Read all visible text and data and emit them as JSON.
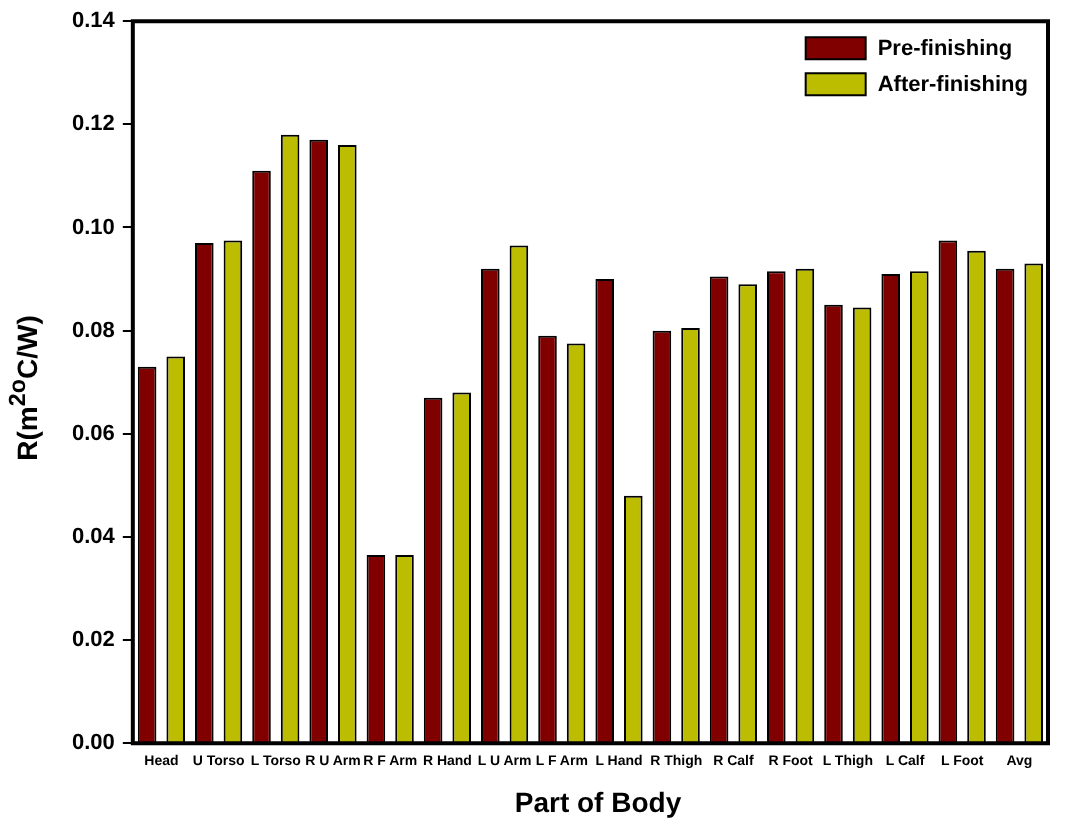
{
  "chart_data": {
    "type": "bar",
    "xlabel": "Part of Body",
    "ylabel": "R(m$^{2o}$C/W)",
    "categories": [
      "Head",
      "U Torso",
      "L Torso",
      "R U Arm",
      "R F Arm",
      "R Hand",
      "L U Arm",
      "L F Arm",
      "L Hand",
      "R Thigh",
      "R Calf",
      "R Foot",
      "L Thigh",
      "L Calf",
      "L Foot",
      "Avg"
    ],
    "series": [
      {
        "name": "Pre-finishing",
        "color": "#800000",
        "values": [
          0.073,
          0.097,
          0.111,
          0.117,
          0.0365,
          0.067,
          0.092,
          0.079,
          0.09,
          0.08,
          0.0905,
          0.0915,
          0.085,
          0.091,
          0.0975,
          0.092
        ]
      },
      {
        "name": "After-finishing",
        "color": "#bcbc00",
        "values": [
          0.075,
          0.0975,
          0.118,
          0.116,
          0.0365,
          0.068,
          0.0965,
          0.0775,
          0.048,
          0.0805,
          0.089,
          0.092,
          0.0845,
          0.0915,
          0.0955,
          0.093
        ]
      }
    ],
    "ylim": [
      0,
      0.14
    ],
    "yticks": [
      {
        "value": 0,
        "label": "0.00"
      },
      0.02,
      0.04,
      0.06,
      0.08,
      {
        "value": 0.1,
        "label": "0.10"
      },
      0.12,
      0.14
    ],
    "grid": false,
    "legend": "top right"
  }
}
